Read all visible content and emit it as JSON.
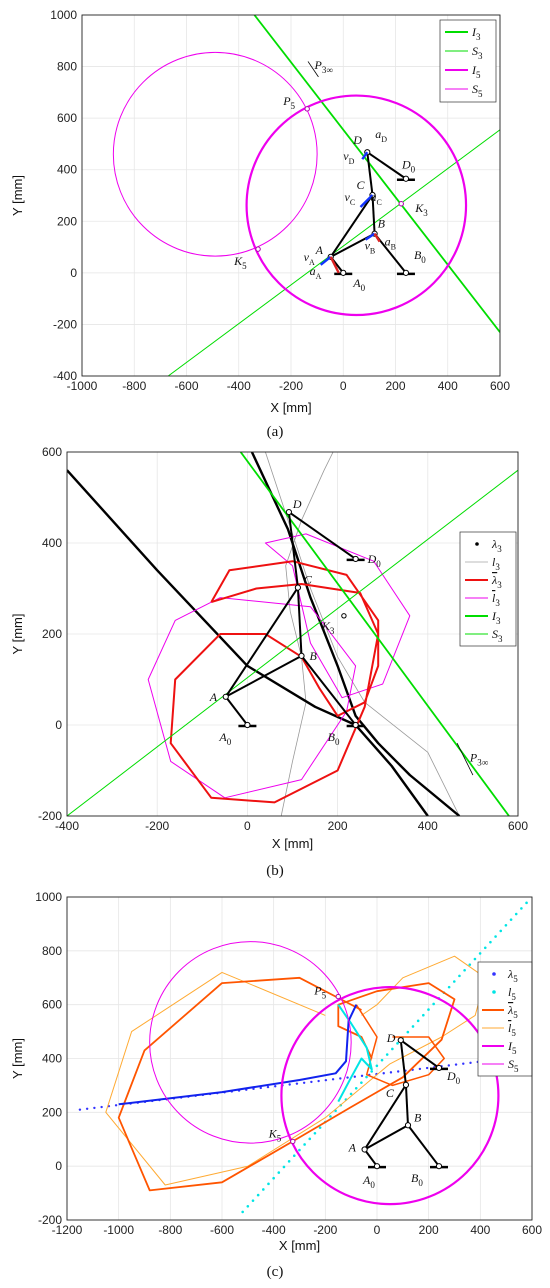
{
  "chart_data": [
    {
      "panel": "a",
      "type": "mechanism",
      "caption": "(a)",
      "xlabel": "X [mm]",
      "ylabel": "Y [mm]",
      "xlim": [
        -1000,
        600
      ],
      "ylim": [
        -400,
        1000
      ],
      "xticks": [
        -1000,
        -800,
        -600,
        -400,
        -200,
        0,
        200,
        400,
        600
      ],
      "yticks": [
        -400,
        -200,
        0,
        200,
        400,
        600,
        800,
        1000
      ],
      "grid": true,
      "legend_position": "top-right",
      "legend": [
        {
          "label": "I3",
          "color": "#00dd00",
          "width": 2
        },
        {
          "label": "S3",
          "color": "#00dd00",
          "width": 1
        },
        {
          "label": "I5",
          "color": "#ee00ee",
          "width": 2
        },
        {
          "label": "S5",
          "color": "#ee00ee",
          "width": 1
        }
      ],
      "circles": [
        {
          "name": "I5",
          "cx": 50,
          "cy": 262,
          "r": 420,
          "color": "#ee00ee",
          "width": 2.2
        },
        {
          "name": "S5",
          "cx": -490,
          "cy": 460,
          "r": 390,
          "color": "#ee00ee",
          "width": 1
        }
      ],
      "lines": [
        {
          "name": "I3",
          "p1": [
            -340,
            1000
          ],
          "p2": [
            600,
            -230
          ],
          "color": "#00dd00",
          "width": 1.8
        },
        {
          "name": "S3",
          "p1": [
            -670,
            -400
          ],
          "p2": [
            600,
            555
          ],
          "color": "#00dd00",
          "width": 1
        }
      ],
      "joints": {
        "A0": [
          0,
          0
        ],
        "A": [
          -48,
          62
        ],
        "B": [
          120,
          152
        ],
        "C": [
          112,
          302
        ],
        "D": [
          92,
          468
        ],
        "B0": [
          240,
          0
        ],
        "D0": [
          240,
          365
        ]
      },
      "points": [
        {
          "label": "P5",
          "x": -138,
          "y": 636
        },
        {
          "label": "K5",
          "x": -326,
          "y": 92
        },
        {
          "label": "K3",
          "x": 222,
          "y": 268
        }
      ],
      "labels": [
        "A",
        "B",
        "C",
        "D",
        "A0",
        "B0",
        "D0",
        "P5",
        "K5",
        "K3",
        "vA",
        "aA",
        "vB",
        "aB",
        "vC",
        "aC",
        "vD",
        "aD",
        "P3∞"
      ]
    },
    {
      "panel": "b",
      "type": "mechanism",
      "caption": "(b)",
      "xlabel": "X [mm]",
      "ylabel": "Y [mm]",
      "xlim": [
        -400,
        600
      ],
      "ylim": [
        -200,
        600
      ],
      "xticks": [
        -400,
        -200,
        0,
        200,
        400,
        600
      ],
      "yticks": [
        -200,
        0,
        200,
        400,
        600
      ],
      "grid": true,
      "legend_position": "right",
      "legend": [
        {
          "label": "λ3",
          "color": "#000000",
          "marker": "dot"
        },
        {
          "label": "l3",
          "color": "#bbbbbb",
          "width": 1
        },
        {
          "label": "λ3",
          "color": "#ee1111",
          "width": 2,
          "overline": true
        },
        {
          "label": "l3",
          "color": "#ee00ee",
          "width": 1,
          "overline": true
        },
        {
          "label": "I3",
          "color": "#00dd00",
          "width": 2
        },
        {
          "label": "S3",
          "color": "#00dd00",
          "width": 1
        }
      ],
      "lines": [
        {
          "name": "I3",
          "p1": [
            -15,
            600
          ],
          "p2": [
            580,
            -200
          ],
          "color": "#00dd00",
          "width": 1.8
        },
        {
          "name": "S3",
          "p1": [
            -400,
            -200
          ],
          "p2": [
            600,
            560
          ],
          "color": "#00dd00",
          "width": 1
        }
      ],
      "joints": {
        "A0": [
          0,
          0
        ],
        "A": [
          -48,
          62
        ],
        "B": [
          120,
          152
        ],
        "C": [
          112,
          302
        ],
        "D": [
          92,
          468
        ],
        "B0": [
          240,
          0
        ],
        "D0": [
          240,
          365
        ]
      },
      "points": [
        {
          "label": "K3",
          "x": 214,
          "y": 240
        }
      ],
      "labels": [
        "A",
        "B",
        "C",
        "D",
        "A0",
        "B0",
        "D0",
        "K3",
        "P3∞"
      ]
    },
    {
      "panel": "c",
      "type": "mechanism",
      "caption": "(c)",
      "xlabel": "X [mm]",
      "ylabel": "Y [mm]",
      "xlim": [
        -1200,
        600
      ],
      "ylim": [
        -200,
        1000
      ],
      "xticks": [
        -1200,
        -1000,
        -800,
        -600,
        -400,
        -200,
        0,
        200,
        400,
        600
      ],
      "yticks": [
        -200,
        0,
        200,
        400,
        600,
        800,
        1000
      ],
      "grid": true,
      "legend_position": "right",
      "legend": [
        {
          "label": "λ5",
          "color": "#3333ff",
          "marker": "dot"
        },
        {
          "label": "l5",
          "color": "#00e5e5",
          "marker": "dot"
        },
        {
          "label": "λ5",
          "color": "#ff5500",
          "width": 2,
          "overline": true
        },
        {
          "label": "l5",
          "color": "#ffaa33",
          "width": 1,
          "overline": true
        },
        {
          "label": "I5",
          "color": "#ee00ee",
          "width": 2
        },
        {
          "label": "S5",
          "color": "#ee00ee",
          "width": 1
        }
      ],
      "circles": [
        {
          "name": "I5",
          "cx": 50,
          "cy": 262,
          "r": 420,
          "color": "#ee00ee",
          "width": 2.2
        },
        {
          "name": "S5",
          "cx": -490,
          "cy": 460,
          "r": 390,
          "color": "#ee00ee",
          "width": 1
        }
      ],
      "joints": {
        "A0": [
          0,
          0
        ],
        "A": [
          -48,
          62
        ],
        "B": [
          120,
          152
        ],
        "C": [
          112,
          302
        ],
        "D": [
          92,
          468
        ],
        "B0": [
          240,
          0
        ],
        "D0": [
          240,
          365
        ]
      },
      "points": [
        {
          "label": "P5",
          "x": -150,
          "y": 630
        },
        {
          "label": "K5",
          "x": -326,
          "y": 92
        }
      ],
      "labels": [
        "A",
        "B",
        "C",
        "D",
        "A0",
        "B0",
        "D0",
        "P5",
        "K5"
      ]
    }
  ]
}
